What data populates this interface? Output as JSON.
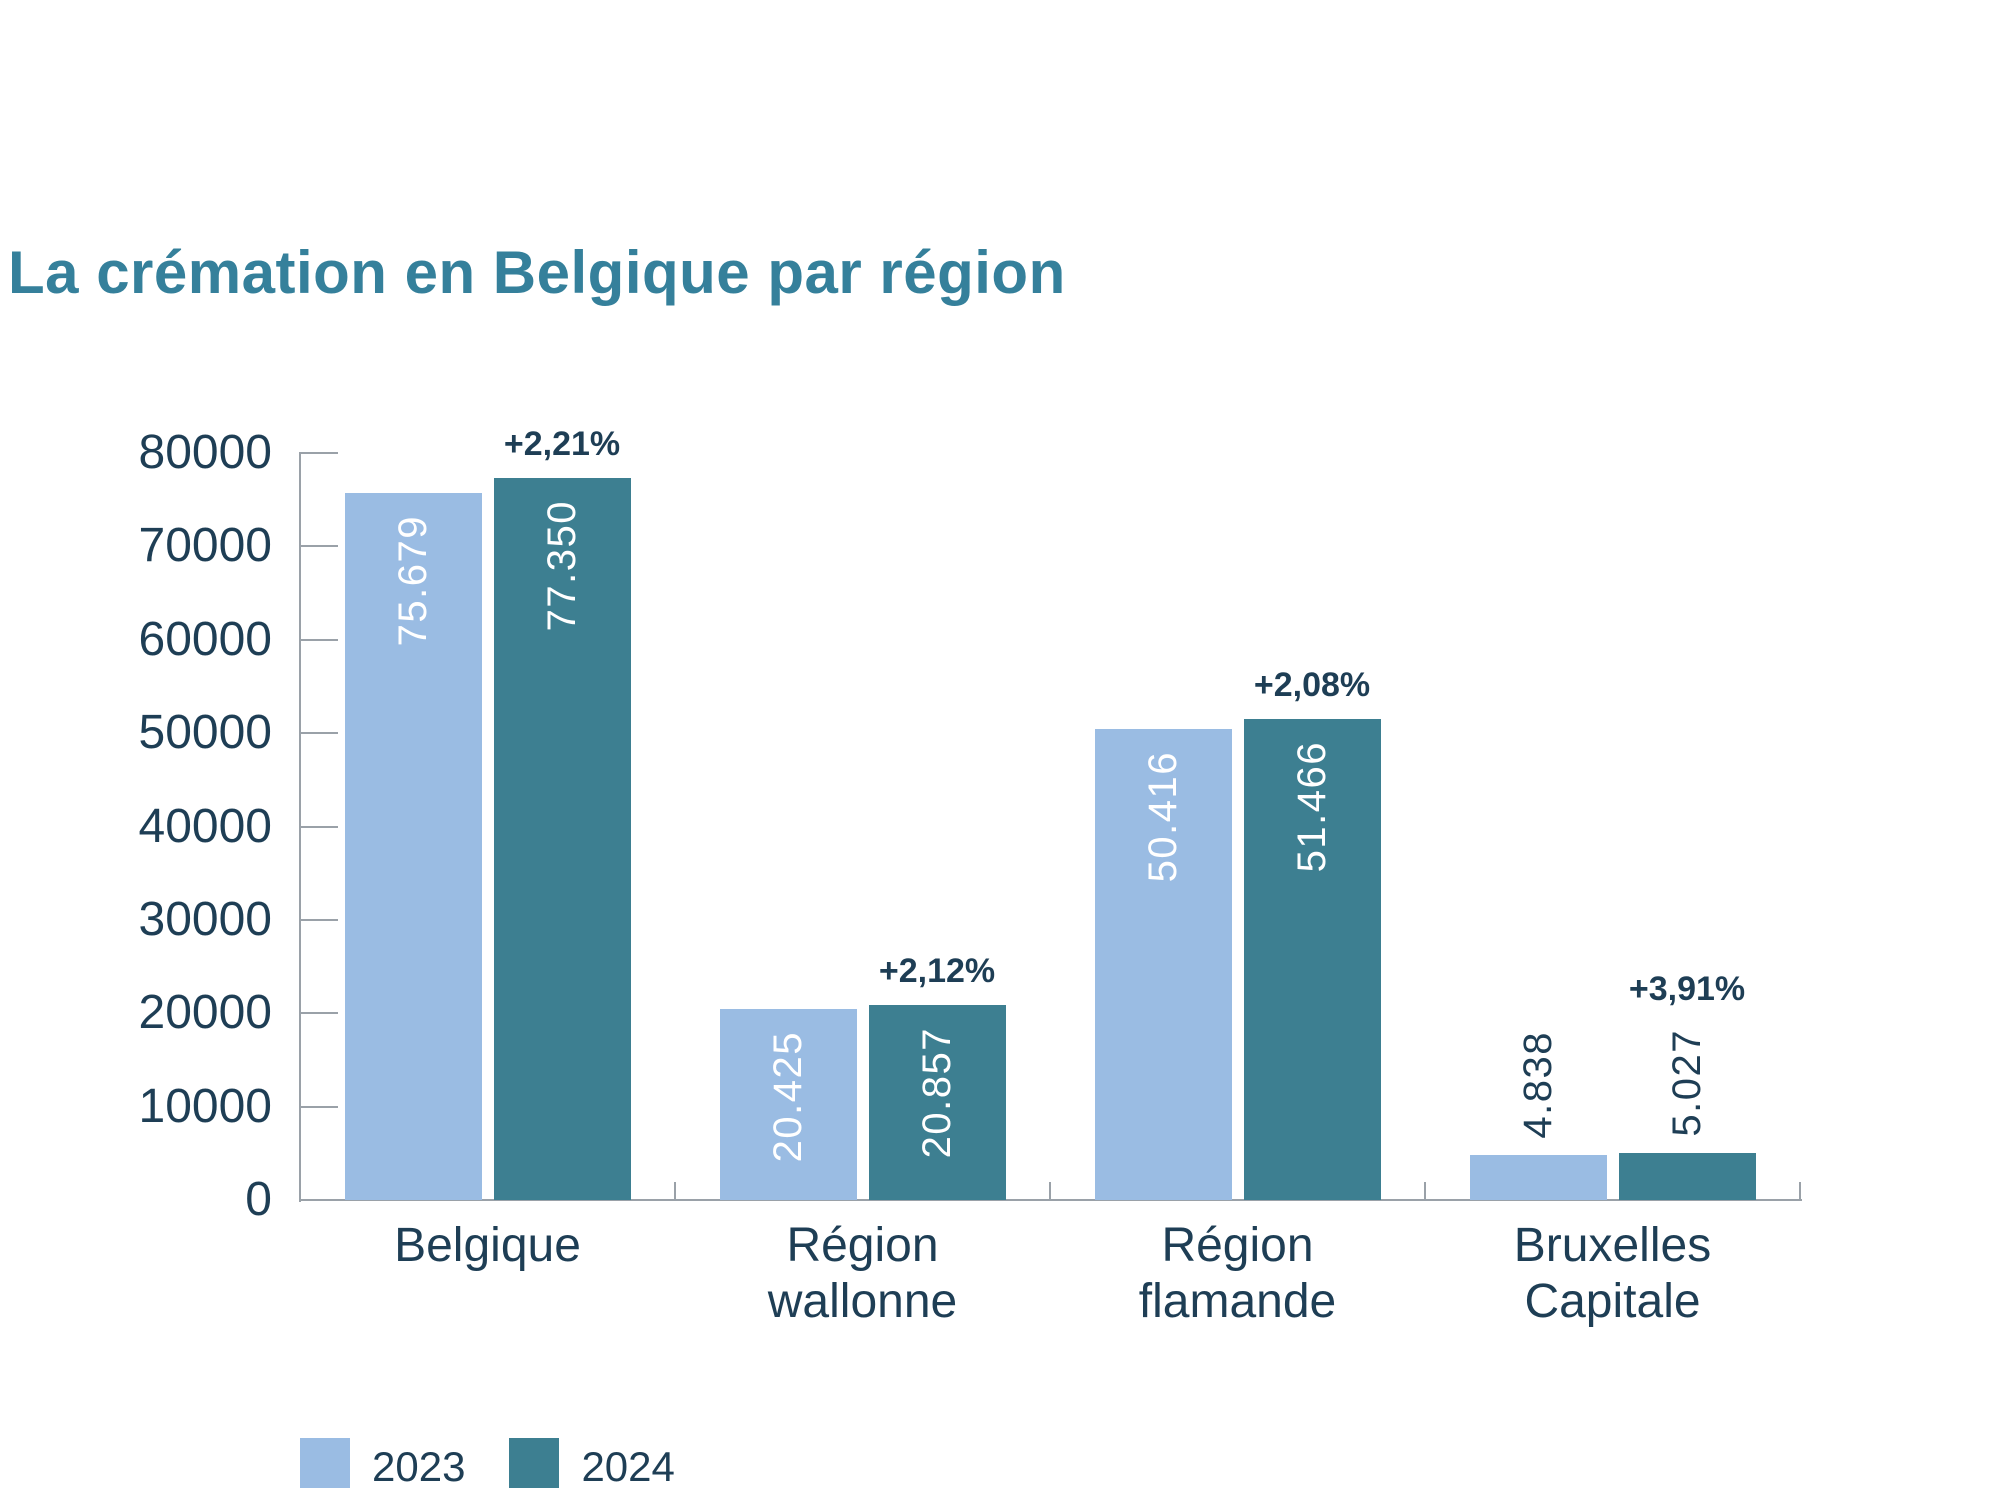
{
  "title": "La crémation en Belgique par région",
  "colors": {
    "series_2023": "#9ABCE3",
    "series_2024": "#3D7F91",
    "title_text": "#35809B",
    "label_text": "#1E3E55",
    "axis_line": "#9AA1A8",
    "bar_value_inside_text": "#FFFFFF",
    "background": "#FFFFFF"
  },
  "chart_data": {
    "type": "bar",
    "title": "La crémation en Belgique par région",
    "categories": [
      "Belgique",
      "Région wallonne",
      "Région flamande",
      "Bruxelles Capitale"
    ],
    "category_lines": [
      [
        "Belgique"
      ],
      [
        "Région",
        "wallonne"
      ],
      [
        "Région",
        "flamande"
      ],
      [
        "Bruxelles",
        "Capitale"
      ]
    ],
    "series": [
      {
        "name": "2023",
        "values": [
          75679,
          20425,
          50416,
          4838
        ],
        "value_labels": [
          "75.679",
          "20.425",
          "50.416",
          "4.838"
        ]
      },
      {
        "name": "2024",
        "values": [
          77350,
          20857,
          51466,
          5027
        ],
        "value_labels": [
          "77.350",
          "20.857",
          "51.466",
          "5.027"
        ]
      }
    ],
    "pct_change_labels": [
      "+2,21%",
      "+2,12%",
      "+2,08%",
      "+3,91%"
    ],
    "ylim": [
      0,
      80000
    ],
    "yticks": [
      0,
      10000,
      20000,
      30000,
      40000,
      50000,
      60000,
      70000,
      80000
    ],
    "ytick_labels": [
      "0",
      "10000",
      "20000",
      "30000",
      "40000",
      "50000",
      "60000",
      "70000",
      "80000"
    ],
    "grid": false,
    "legend_position": "bottom-left"
  }
}
